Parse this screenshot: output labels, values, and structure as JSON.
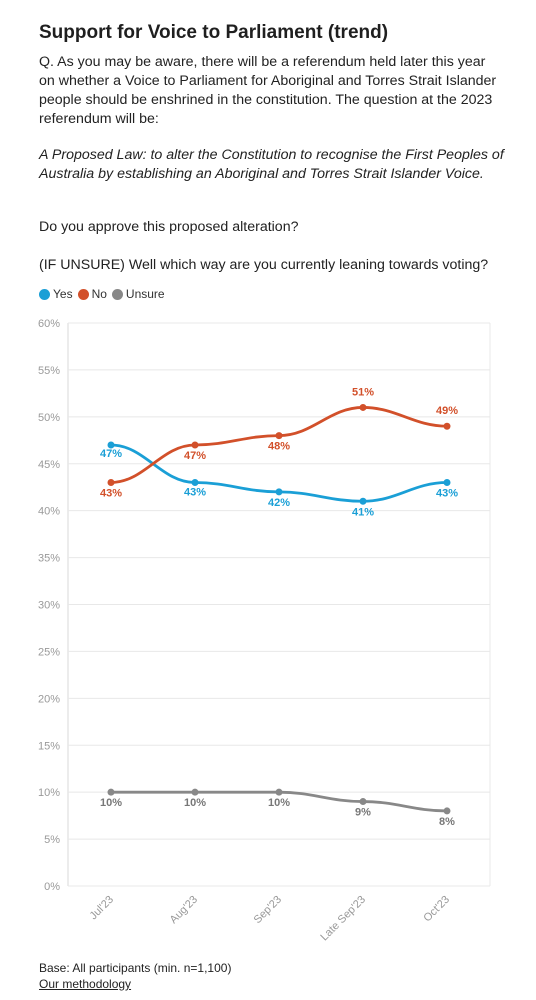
{
  "header": {
    "title": "Support for Voice to Parliament (trend)",
    "intro": "Q. As you may be aware, there will be a referendum held later this year on whether a Voice to Parliament for Aboriginal and Torres Strait Islander people should be enshrined in the constitution. The question at the 2023 referendum will be:",
    "proposed_law": "A Proposed Law: to alter the Constitution to recognise the First Peoples of Australia by establishing an Aboriginal and Torres Strait Islander Voice.",
    "question_approve": "Do you approve this proposed alteration?",
    "question_unsure": "(IF UNSURE) Well which way are you currently leaning towards voting?"
  },
  "legend": [
    {
      "name": "Yes",
      "color": "#1a9fd6"
    },
    {
      "name": "No",
      "color": "#d2502a"
    },
    {
      "name": "Unsure",
      "color": "#888888"
    }
  ],
  "chart_data": {
    "type": "line",
    "categories": [
      "Jul'23",
      "Aug'23",
      "Sep'23",
      "Late Sep'23",
      "Oct'23"
    ],
    "series": [
      {
        "name": "Yes",
        "color": "#1a9fd6",
        "values": [
          47,
          43,
          42,
          41,
          43
        ],
        "labels": [
          "47%",
          "43%",
          "42%",
          "41%",
          "43%"
        ]
      },
      {
        "name": "No",
        "color": "#d2502a",
        "values": [
          43,
          47,
          48,
          51,
          49
        ],
        "labels": [
          "43%",
          "47%",
          "48%",
          "51%",
          "49%"
        ]
      },
      {
        "name": "Unsure",
        "color": "#888888",
        "values": [
          10,
          10,
          10,
          9,
          8
        ],
        "labels": [
          "10%",
          "10%",
          "10%",
          "9%",
          "8%"
        ]
      }
    ],
    "ylim": [
      0,
      60
    ],
    "yticks": [
      0,
      5,
      10,
      15,
      20,
      25,
      30,
      35,
      40,
      45,
      50,
      55,
      60
    ],
    "ytick_labels": [
      "0%",
      "5%",
      "10%",
      "15%",
      "20%",
      "25%",
      "30%",
      "35%",
      "40%",
      "45%",
      "50%",
      "55%",
      "60%"
    ],
    "grid": true,
    "legend_position": "top-left"
  },
  "footer": {
    "base": "Base: All participants (min. n=1,100)",
    "methodology_link": "Our methodology"
  }
}
